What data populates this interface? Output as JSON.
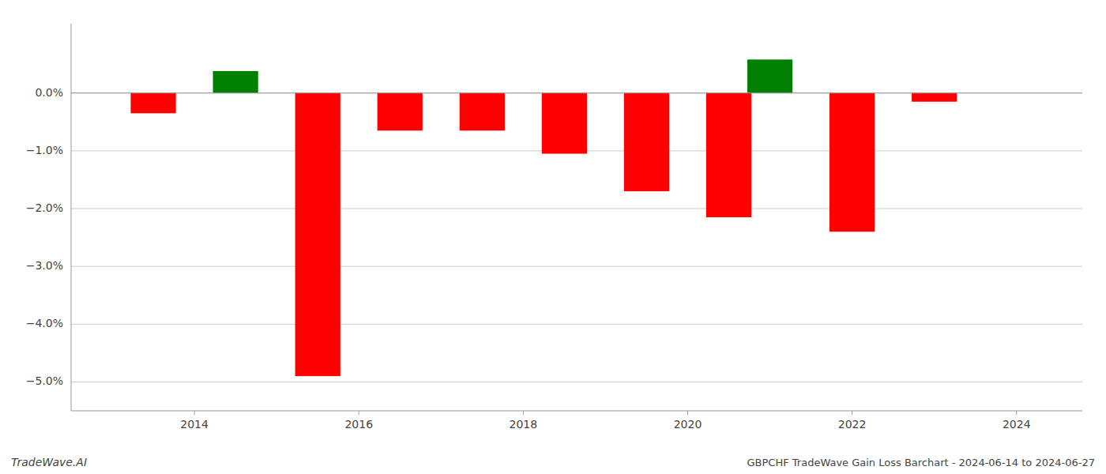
{
  "chart_data": {
    "type": "bar",
    "title": "GBPCHF TradeWave Gain Loss Barchart - 2024-06-14 to 2024-06-27",
    "annotations": [
      "TradeWave.AI"
    ],
    "x": [
      2013.5,
      2014.5,
      2015.5,
      2016.5,
      2017.5,
      2018.5,
      2019.5,
      2020.5,
      2021.0,
      2022.0,
      2023.0
    ],
    "values": [
      -0.0035,
      0.0038,
      -0.049,
      -0.0065,
      -0.0065,
      -0.0105,
      -0.017,
      -0.0215,
      0.0058,
      -0.024,
      -0.0015
    ],
    "colors": [
      "red",
      "green",
      "red",
      "red",
      "red",
      "red",
      "red",
      "red",
      "green",
      "red",
      "red"
    ],
    "xlim": [
      2012.5,
      2024.8
    ],
    "xticks": [
      2014,
      2016,
      2018,
      2020,
      2022,
      2024
    ],
    "ylim": [
      -0.055,
      0.012
    ],
    "yticks": [
      {
        "value": 0.0,
        "label": "0.0%"
      },
      {
        "value": -0.01,
        "label": "−1.0%"
      },
      {
        "value": -0.02,
        "label": "−2.0%"
      },
      {
        "value": -0.03,
        "label": "−3.0%"
      },
      {
        "value": -0.04,
        "label": "−4.0%"
      },
      {
        "value": -0.05,
        "label": "−5.0%"
      }
    ],
    "grid": true
  }
}
